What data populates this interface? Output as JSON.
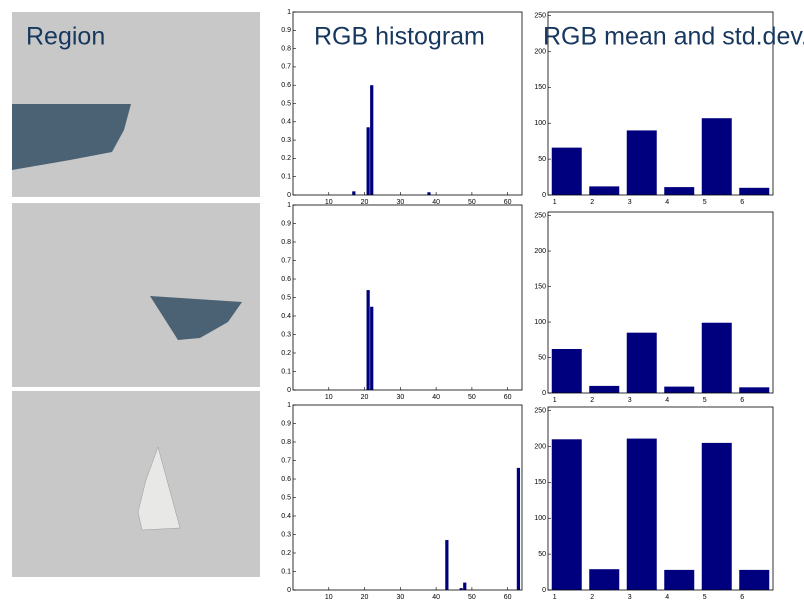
{
  "header": {
    "region": "Region",
    "histogram": "RGB histogram",
    "stats": "RGB mean and std.dev."
  },
  "chart_data": [
    {
      "type": "histogram",
      "x": [
        17,
        21,
        22,
        38
      ],
      "values": [
        0.02,
        0.37,
        0.6,
        0.015
      ],
      "color": "#00007f",
      "xlim": [
        0,
        64
      ],
      "ylim": [
        0,
        1
      ],
      "xticks": [
        10,
        20,
        30,
        40,
        50,
        60
      ],
      "yticks": [
        0,
        0.1,
        0.2,
        0.3,
        0.4,
        0.5,
        0.6,
        0.7,
        0.8,
        0.9,
        1
      ]
    },
    {
      "type": "bar",
      "categories": [
        "1",
        "2",
        "3",
        "4",
        "5",
        "6"
      ],
      "values": [
        66,
        12,
        90,
        11,
        107,
        10
      ],
      "color": "#00007f",
      "ylim": [
        0,
        255
      ],
      "yticks": [
        0,
        50,
        100,
        150,
        200,
        250
      ]
    },
    {
      "type": "histogram",
      "x": [
        21,
        22
      ],
      "values": [
        0.54,
        0.45
      ],
      "color": "#00007f",
      "xlim": [
        0,
        64
      ],
      "ylim": [
        0,
        1
      ],
      "xticks": [
        10,
        20,
        30,
        40,
        50,
        60
      ],
      "yticks": [
        0,
        0.1,
        0.2,
        0.3,
        0.4,
        0.5,
        0.6,
        0.7,
        0.8,
        0.9,
        1
      ]
    },
    {
      "type": "bar",
      "categories": [
        "1",
        "2",
        "3",
        "4",
        "5",
        "6"
      ],
      "values": [
        62,
        10,
        85,
        9,
        99,
        8
      ],
      "color": "#00007f",
      "ylim": [
        0,
        255
      ],
      "yticks": [
        0,
        50,
        100,
        150,
        200,
        250
      ]
    },
    {
      "type": "histogram",
      "x": [
        43,
        47,
        48,
        63
      ],
      "values": [
        0.27,
        0.01,
        0.04,
        0.66
      ],
      "color": "#00007f",
      "xlim": [
        0,
        64
      ],
      "ylim": [
        0,
        1
      ],
      "xticks": [
        10,
        20,
        30,
        40,
        50,
        60
      ],
      "yticks": [
        0,
        0.1,
        0.2,
        0.3,
        0.4,
        0.5,
        0.6,
        0.7,
        0.8,
        0.9,
        1
      ]
    },
    {
      "type": "bar",
      "categories": [
        "1",
        "2",
        "3",
        "4",
        "5",
        "6"
      ],
      "values": [
        210,
        29,
        211,
        28,
        205,
        28
      ],
      "color": "#00007f",
      "ylim": [
        0,
        255
      ],
      "yticks": [
        0,
        50,
        100,
        150,
        200,
        250
      ]
    }
  ]
}
